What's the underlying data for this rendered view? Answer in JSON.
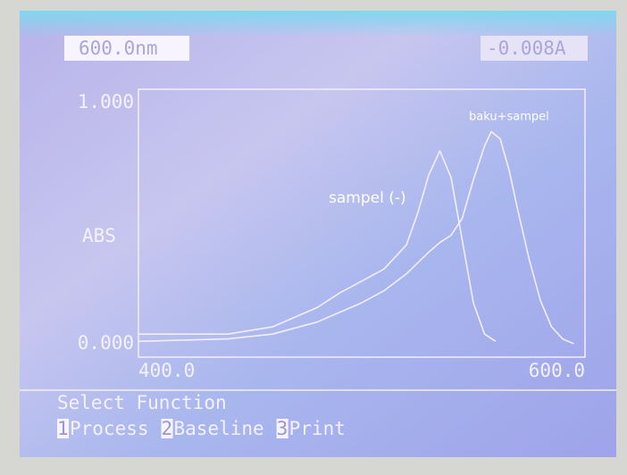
{
  "chart_data": {
    "type": "line",
    "header_left": "600.0nm",
    "header_right": "-0.008A",
    "ylabel": "ABS",
    "xlim": [
      400,
      600
    ],
    "ylim": [
      0,
      1
    ],
    "xticks": [
      {
        "value": 400,
        "label": "400.0"
      },
      {
        "value": 600,
        "label": "600.0"
      }
    ],
    "yticks": [
      {
        "value": 0,
        "label": "0.000"
      },
      {
        "value": 1,
        "label": "1.000"
      }
    ],
    "grid": false,
    "color": "#f3eefc",
    "annotations": [
      "sampel (-)",
      "baku+sampel"
    ],
    "series": [
      {
        "x": [
          400,
          440,
          460,
          480,
          490,
          500,
          510,
          520,
          525,
          530,
          535,
          540,
          545,
          550,
          555,
          560
        ],
        "values": [
          0.04,
          0.04,
          0.07,
          0.15,
          0.21,
          0.26,
          0.31,
          0.41,
          0.54,
          0.7,
          0.8,
          0.69,
          0.43,
          0.17,
          0.04,
          0.01
        ]
      },
      {
        "x": [
          400,
          440,
          460,
          480,
          490,
          500,
          510,
          520,
          530,
          535,
          540,
          545,
          550,
          555,
          558,
          562,
          566,
          570,
          575,
          580,
          585,
          590,
          595
        ],
        "values": [
          0.01,
          0.02,
          0.04,
          0.09,
          0.13,
          0.17,
          0.22,
          0.29,
          0.38,
          0.42,
          0.45,
          0.52,
          0.68,
          0.82,
          0.88,
          0.85,
          0.72,
          0.55,
          0.35,
          0.18,
          0.07,
          0.02,
          0.0
        ]
      }
    ],
    "footer": {
      "prompt": "Select Function",
      "menu": [
        {
          "key": "1",
          "label": "Process"
        },
        {
          "key": "2",
          "label": "Baseline"
        },
        {
          "key": "3",
          "label": "Print"
        }
      ]
    }
  }
}
